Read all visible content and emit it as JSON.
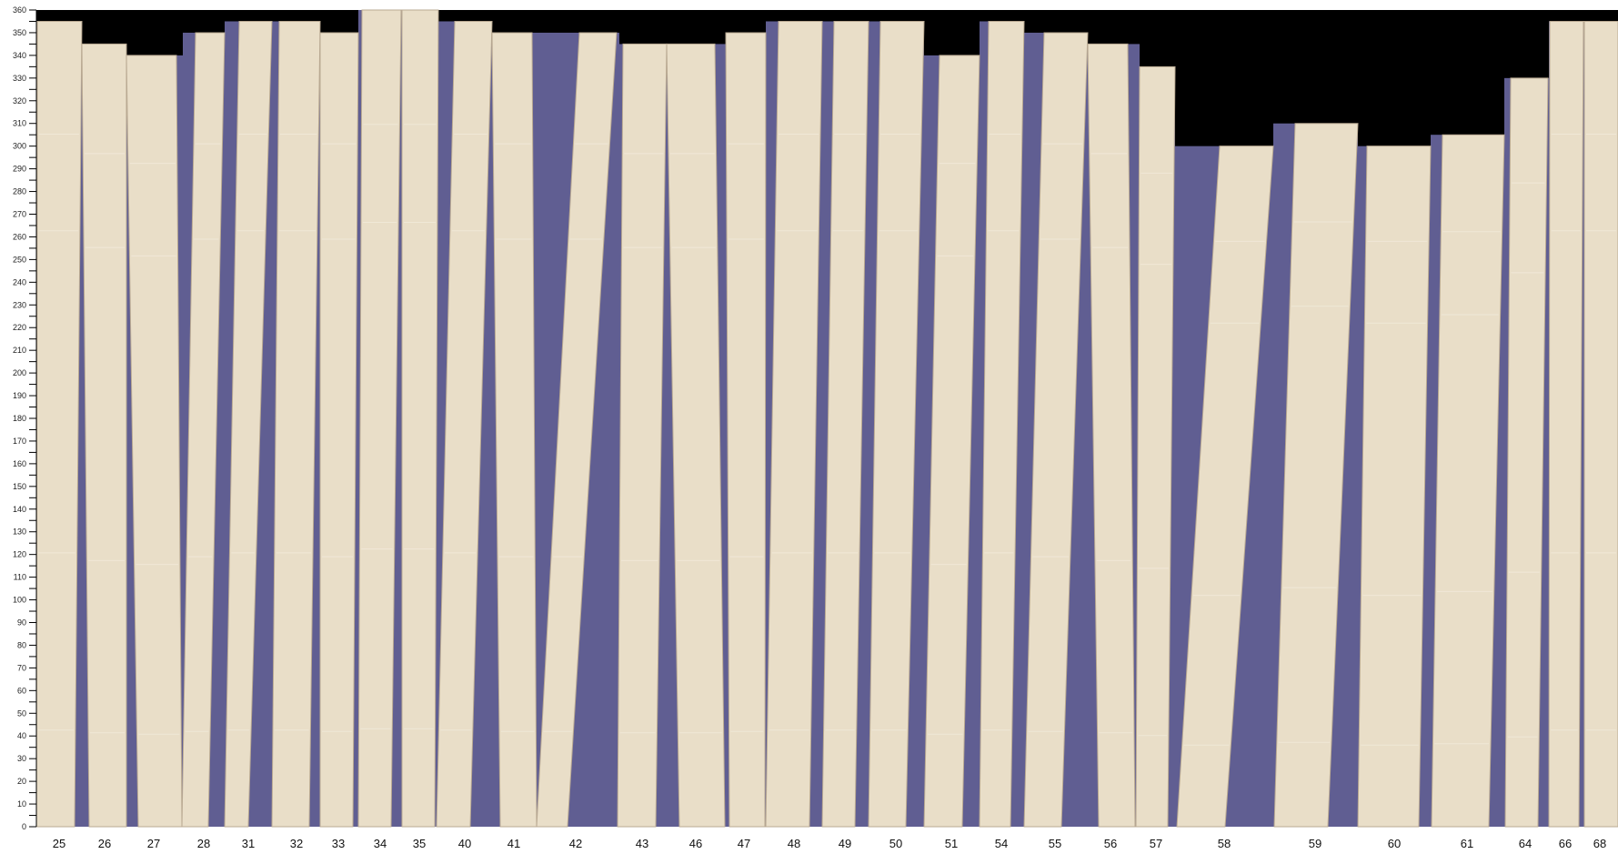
{
  "y_axis": {
    "min": 0,
    "max": 360,
    "major_step": 10,
    "minor_step": 5,
    "tick_labels": [
      "0",
      "10",
      "20",
      "30",
      "40",
      "50",
      "60",
      "70",
      "80",
      "90",
      "100",
      "110",
      "120",
      "130",
      "140",
      "150",
      "160",
      "170",
      "180",
      "190",
      "200",
      "210",
      "220",
      "230",
      "240",
      "250",
      "260",
      "270",
      "280",
      "290",
      "300",
      "310",
      "320",
      "330",
      "340",
      "350",
      "360"
    ]
  },
  "boards": [
    {
      "label": "25",
      "length": 355
    },
    {
      "label": "26",
      "length": 345
    },
    {
      "label": "27",
      "length": 340
    },
    {
      "label": "28",
      "length": 350
    },
    {
      "label": "31",
      "length": 355
    },
    {
      "label": "32",
      "length": 355
    },
    {
      "label": "33",
      "length": 350
    },
    {
      "label": "34",
      "length": 360
    },
    {
      "label": "35",
      "length": 360
    },
    {
      "label": "40",
      "length": 355
    },
    {
      "label": "41",
      "length": 350
    },
    {
      "label": "42",
      "length": 350
    },
    {
      "label": "43",
      "length": 345
    },
    {
      "label": "46",
      "length": 345
    },
    {
      "label": "47",
      "length": 350
    },
    {
      "label": "48",
      "length": 355
    },
    {
      "label": "49",
      "length": 355
    },
    {
      "label": "50",
      "length": 355
    },
    {
      "label": "51",
      "length": 340
    },
    {
      "label": "54",
      "length": 355
    },
    {
      "label": "55",
      "length": 350
    },
    {
      "label": "56",
      "length": 345
    },
    {
      "label": "57",
      "length": 335
    },
    {
      "label": "58",
      "length": 300
    },
    {
      "label": "59",
      "length": 310
    },
    {
      "label": "60",
      "length": 300
    },
    {
      "label": "61",
      "length": 305
    },
    {
      "label": "64",
      "length": 330
    },
    {
      "label": "66",
      "length": 355
    },
    {
      "label": "68",
      "length": 355
    }
  ],
  "colors": {
    "background_top": "#000000",
    "slot": "#605e92",
    "board": "#e9dec8",
    "board_edge": "#b9a992",
    "axis": "#000000"
  }
}
